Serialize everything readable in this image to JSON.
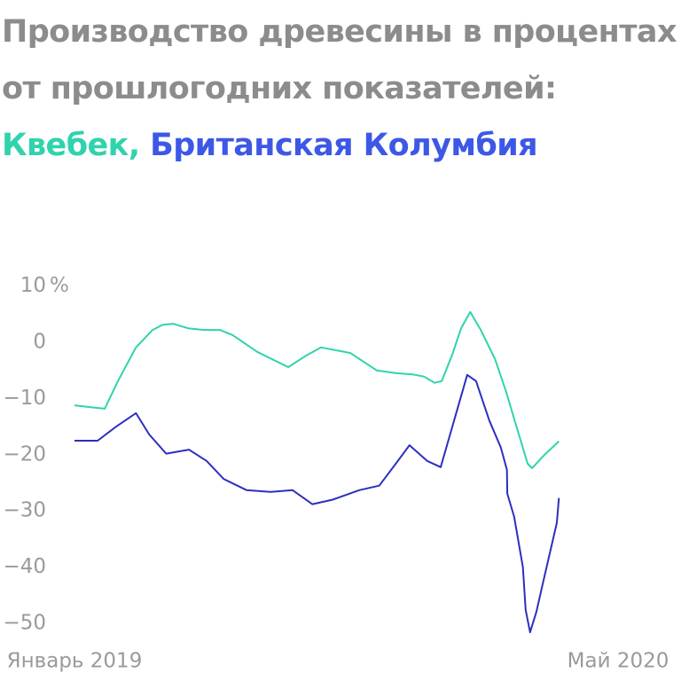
{
  "chart_data": {
    "type": "line",
    "title": "Производство древесины в процентах от прошлогодних показателей:",
    "xlim": [
      0,
      16
    ],
    "xticks": [
      {
        "value": 0,
        "label": "Январь 2019"
      },
      {
        "value": 16,
        "label": "Май 2020"
      }
    ],
    "ylim": [
      -53,
      12
    ],
    "yticks": [
      10,
      0,
      {
        "value": -10,
        "label": "−10"
      },
      {
        "value": -20,
        "label": "−20"
      },
      {
        "value": -30,
        "label": "−30"
      },
      {
        "value": -40,
        "label": "−40"
      },
      {
        "value": -50,
        "label": "−50"
      }
    ],
    "y_unit": "%",
    "grid": false,
    "series": [
      {
        "name": "Квебек,",
        "color": "#2fd3ac",
        "label_color": "#2fd3ac",
        "x": [
          0,
          0.42,
          0.89,
          1.28,
          1.81,
          2.3,
          2.59,
          2.9,
          3.34,
          3.81,
          4.28,
          4.65,
          5.38,
          6.29,
          6.81,
          7.26,
          8.12,
          8.9,
          9.48,
          9.95,
          10.29,
          10.6,
          10.81,
          11.12,
          11.38,
          11.65,
          11.96,
          12.38,
          12.69,
          13.0,
          13.34,
          13.47,
          13.79,
          14.26
        ],
        "values": [
          -11.2,
          -11.5,
          -11.8,
          -6.9,
          -0.9,
          2.2,
          3.1,
          3.3,
          2.5,
          2.2,
          2.2,
          1.3,
          -1.7,
          -4.4,
          -2.4,
          -0.9,
          -1.9,
          -5.0,
          -5.5,
          -5.7,
          -6.1,
          -7.2,
          -6.9,
          -2.2,
          2.5,
          5.4,
          2.2,
          -3.0,
          -8.5,
          -14.8,
          -21.6,
          -22.4,
          -20.3,
          -17.6
        ]
      },
      {
        "name": "Британская Колумбия",
        "color": "#2c2fc0",
        "label_color": "#3d58e6",
        "x": [
          0,
          0.68,
          1.2,
          1.81,
          2.2,
          2.7,
          3.37,
          3.89,
          4.39,
          5.07,
          5.77,
          6.42,
          7.0,
          7.6,
          8.38,
          8.97,
          9.42,
          9.86,
          10.38,
          10.78,
          11.56,
          11.82,
          12.21,
          12.55,
          12.73,
          12.74,
          12.94,
          13.2,
          13.28,
          13.41,
          13.6,
          13.78,
          14.2,
          14.26
        ],
        "values": [
          -17.5,
          -17.5,
          -15.1,
          -12.6,
          -16.4,
          -19.8,
          -19.1,
          -21.1,
          -24.3,
          -26.3,
          -26.6,
          -26.3,
          -28.8,
          -28.0,
          -26.3,
          -25.5,
          -21.9,
          -18.3,
          -21.1,
          -22.2,
          -5.8,
          -6.9,
          -13.9,
          -18.7,
          -22.7,
          -26.9,
          -31.0,
          -40.0,
          -47.6,
          -51.6,
          -47.9,
          -43.1,
          -32.1,
          -27.7
        ]
      }
    ]
  }
}
